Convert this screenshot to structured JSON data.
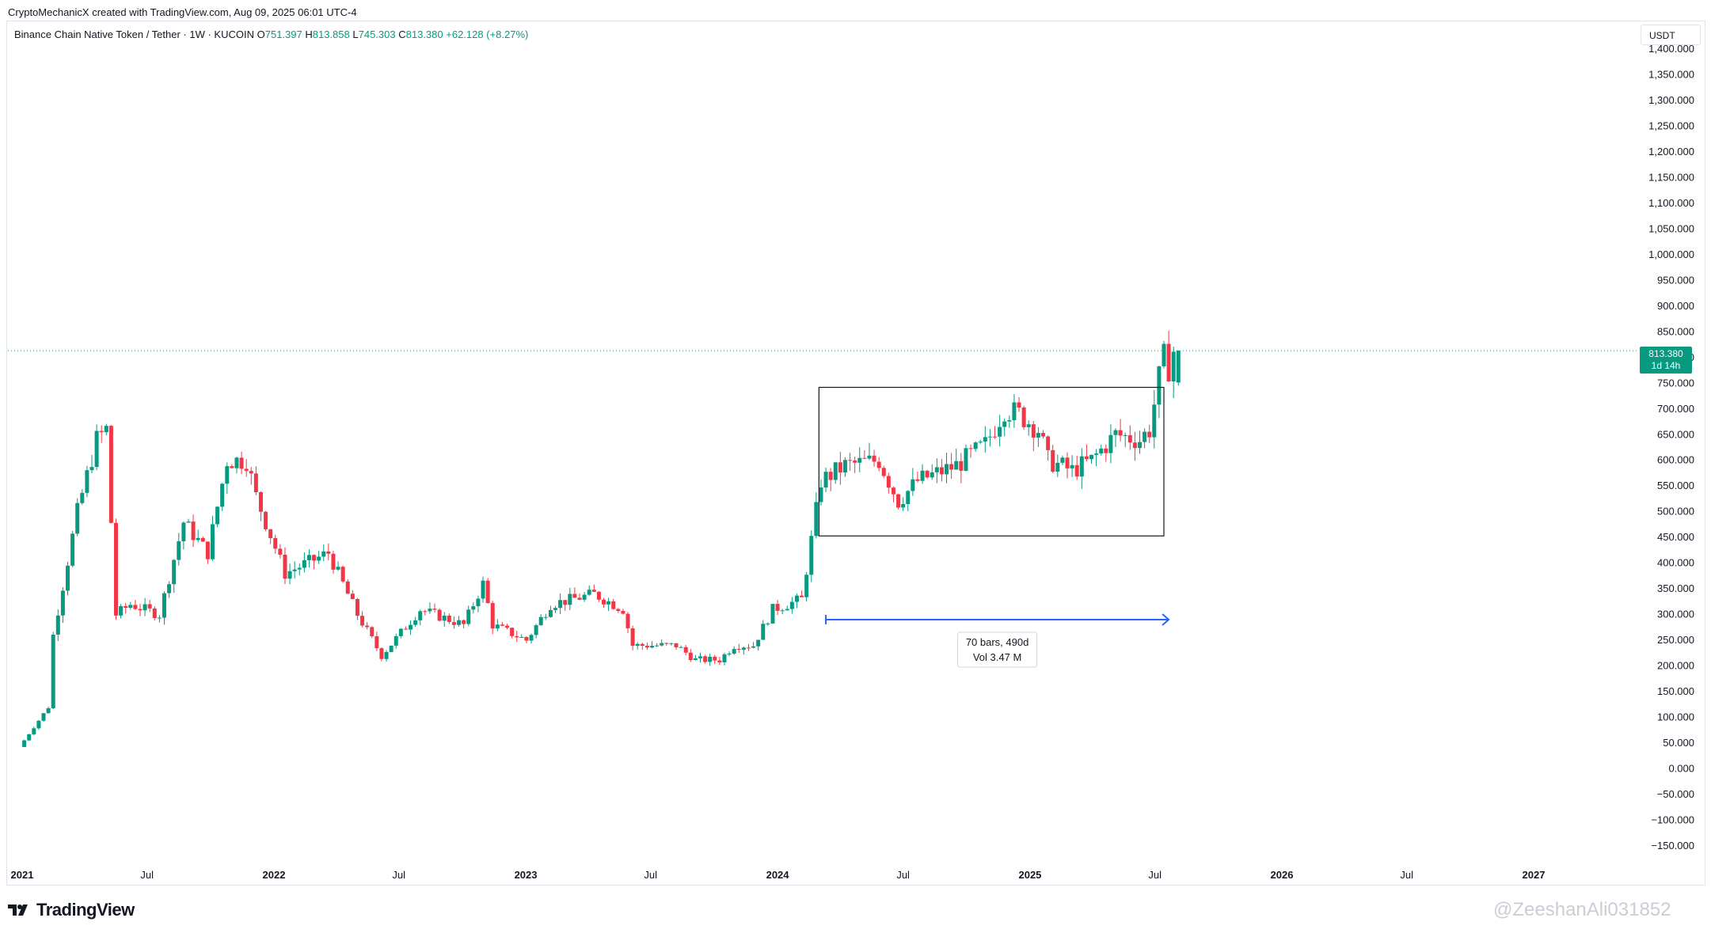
{
  "header": {
    "credit": "CryptoMechanicX created with TradingView.com, Aug 09, 2025 06:01 UTC-4"
  },
  "legend": {
    "symbol": "Binance Chain Native Token / Tether · 1W · KUCOIN",
    "o_label": "O",
    "o_value": "751.397",
    "h_label": "H",
    "h_value": "813.858",
    "l_label": "L",
    "l_value": "745.303",
    "c_label": "C",
    "c_value": "813.380",
    "change": "+62.128 (+8.27%)"
  },
  "currency": "USDT",
  "last_price": {
    "value": "813.380",
    "countdown": "1d 14h"
  },
  "measure": {
    "line1": "70 bars, 490d",
    "line2": "Vol 3.47 M"
  },
  "footer": {
    "brand": "TradingView",
    "watermark": "@ZeeshanAli031852"
  },
  "colors": {
    "up": "#089981",
    "down": "#f23645",
    "accent": "#2962ff",
    "grid": "#e0e3eb"
  },
  "chart_data": {
    "type": "candlestick",
    "title": "Binance Chain Native Token / Tether · 1W · KUCOIN",
    "interval": "1W",
    "x_axis_labels": [
      "2021",
      "Jul",
      "2022",
      "Jul",
      "2023",
      "Jul",
      "2024",
      "Jul",
      "2025",
      "Jul",
      "2026",
      "Jul",
      "2027"
    ],
    "y_axis_labels": [
      "1,400.000",
      "1,350.000",
      "1,300.000",
      "1,250.000",
      "1,200.000",
      "1,150.000",
      "1,100.000",
      "1,050.000",
      "1,000.000",
      "950.000",
      "900.000",
      "850.000",
      "800.000",
      "750.000",
      "700.000",
      "650.000",
      "600.000",
      "550.000",
      "500.000",
      "450.000",
      "400.000",
      "350.000",
      "300.000",
      "250.000",
      "200.000",
      "150.000",
      "100.000",
      "50.000",
      "0.000",
      "−50.000",
      "−100.000",
      "−150.000"
    ],
    "ylim": [
      -175,
      1410
    ],
    "x_range": [
      "2021-01-01",
      "2027-07-15"
    ],
    "current_price": 813.38,
    "grid": false,
    "rectangle": {
      "from": "2024-03-01",
      "to": "2025-07-14",
      "top": 742,
      "bottom": 453
    },
    "date_range_measure": {
      "from": "2024-03-11",
      "to": "2025-07-21",
      "bars": 70,
      "days": 490,
      "vol": "3.47 M"
    },
    "trend_anchors": [
      [
        "2021-01-01",
        37
      ],
      [
        "2021-02-15",
        120
      ],
      [
        "2021-02-22",
        260
      ],
      [
        "2021-03-29",
        500
      ],
      [
        "2021-04-26",
        640
      ],
      [
        "2021-05-10",
        660
      ],
      [
        "2021-05-24",
        300
      ],
      [
        "2021-06-14",
        320
      ],
      [
        "2021-07-26",
        300
      ],
      [
        "2021-08-30",
        480
      ],
      [
        "2021-10-04",
        420
      ],
      [
        "2021-11-01",
        600
      ],
      [
        "2021-11-29",
        600
      ],
      [
        "2021-12-13",
        530
      ],
      [
        "2022-01-24",
        380
      ],
      [
        "2022-03-28",
        420
      ],
      [
        "2022-05-09",
        300
      ],
      [
        "2022-06-13",
        220
      ],
      [
        "2022-08-08",
        310
      ],
      [
        "2022-10-10",
        280
      ],
      [
        "2022-11-07",
        360
      ],
      [
        "2022-11-21",
        280
      ],
      [
        "2023-01-09",
        250
      ],
      [
        "2023-02-13",
        320
      ],
      [
        "2023-04-17",
        340
      ],
      [
        "2023-05-29",
        310
      ],
      [
        "2023-06-12",
        240
      ],
      [
        "2023-08-14",
        240
      ],
      [
        "2023-09-11",
        212
      ],
      [
        "2023-10-16",
        212
      ],
      [
        "2023-11-06",
        240
      ],
      [
        "2023-12-04",
        240
      ],
      [
        "2024-01-01",
        310
      ],
      [
        "2024-02-12",
        330
      ],
      [
        "2024-03-11",
        560
      ],
      [
        "2024-04-15",
        590
      ],
      [
        "2024-06-03",
        600
      ],
      [
        "2024-07-01",
        520
      ],
      [
        "2024-07-29",
        560
      ],
      [
        "2024-09-23",
        590
      ],
      [
        "2024-11-04",
        630
      ],
      [
        "2024-12-02",
        700
      ],
      [
        "2024-12-23",
        690
      ],
      [
        "2025-01-20",
        660
      ],
      [
        "2025-02-03",
        600
      ],
      [
        "2025-03-10",
        580
      ],
      [
        "2025-04-07",
        600
      ],
      [
        "2025-05-12",
        650
      ],
      [
        "2025-06-16",
        640
      ],
      [
        "2025-06-30",
        660
      ],
      [
        "2025-07-14",
        760
      ],
      [
        "2025-07-21",
        800
      ],
      [
        "2025-07-28",
        780
      ],
      [
        "2025-08-04",
        813
      ]
    ],
    "last_candle": {
      "open": 751.397,
      "high": 813.858,
      "low": 745.303,
      "close": 813.38
    }
  }
}
